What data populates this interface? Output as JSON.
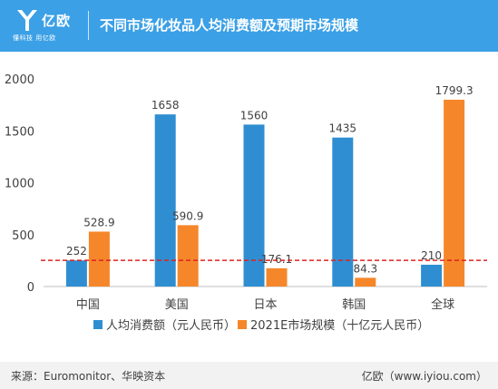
{
  "header": {
    "logo_text": "亿欧",
    "logo_slogan": "懂科技 用亿欧",
    "title": "不同市场化妆品人均消费额及预期市场规模"
  },
  "colors": {
    "header_bg": "#3ba0e6",
    "series_per_capita": "#2f8ed1",
    "series_market": "#f5872a",
    "reference_line": "#e02020"
  },
  "chart_data": {
    "type": "bar",
    "categories": [
      "中国",
      "美国",
      "日本",
      "韩国",
      "全球"
    ],
    "series": [
      {
        "name": "人均消费额（元人民币）",
        "values": [
          252,
          1658,
          1560,
          1435,
          210
        ],
        "labels": [
          "252",
          "1658",
          "1560",
          "1435",
          "210"
        ]
      },
      {
        "name": "2021E市场规模（十亿元人民币）",
        "values": [
          528.9,
          590.9,
          176.1,
          84.3,
          1799.3
        ],
        "labels": [
          "528.9",
          "590.9",
          "176.1",
          "84.3",
          "1799.3"
        ]
      }
    ],
    "y_ticks": [
      "0",
      "500",
      "1000",
      "1500",
      "2000"
    ],
    "ylim": [
      0,
      2000
    ],
    "reference_line": {
      "value": 252,
      "style": "dashed"
    },
    "grid": false,
    "legend_position": "bottom"
  },
  "footer": {
    "source": "来源：Euromonitor、华映资本",
    "brand": "亿欧（www.iyiou.com）"
  }
}
